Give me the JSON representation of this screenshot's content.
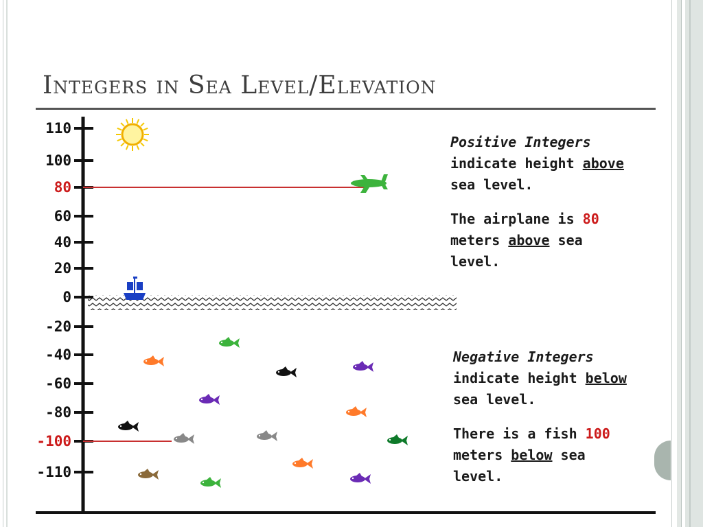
{
  "slide": {
    "title": "Integers in Sea Level/Elevation"
  },
  "axis": {
    "ticks": [
      {
        "value": 110,
        "label": "110",
        "highlight": false
      },
      {
        "value": 100,
        "label": "100",
        "highlight": false
      },
      {
        "value": 80,
        "label": "80",
        "highlight": true
      },
      {
        "value": 60,
        "label": "60",
        "highlight": false
      },
      {
        "value": 40,
        "label": "40",
        "highlight": false
      },
      {
        "value": 20,
        "label": "20",
        "highlight": false
      },
      {
        "value": 0,
        "label": "0",
        "highlight": false
      },
      {
        "value": -20,
        "label": "-20",
        "highlight": false
      },
      {
        "value": -40,
        "label": "-40",
        "highlight": false
      },
      {
        "value": -60,
        "label": "-60",
        "highlight": false
      },
      {
        "value": -80,
        "label": "-80",
        "highlight": false
      },
      {
        "value": -100,
        "label": "-100",
        "highlight": true
      },
      {
        "value": -110,
        "label": "-110",
        "highlight": false
      }
    ],
    "highlight_color": "#cc1b1b"
  },
  "icons": {
    "sun": "sun-icon",
    "airplane": "airplane-icon",
    "ship": "ship-icon",
    "fish": "fish-icon",
    "waves": "waves-pattern"
  },
  "fish_colors": [
    "#3cb33c",
    "#ff7a2a",
    "#111111",
    "#6a2bb5",
    "#888888",
    "#0e7a2a",
    "#8a6a3a"
  ],
  "notes": {
    "positive": {
      "heading": "Positive Integers",
      "line1": "indicate height ",
      "line1_u": "above",
      "line2": "sea level.",
      "fact_a": "The airplane is ",
      "fact_num": "80",
      "fact_b": "meters ",
      "fact_u": "above",
      "fact_c": " sea",
      "fact_d": "level."
    },
    "negative": {
      "heading": "Negative Integers",
      "line1": "indicate height ",
      "line1_u": "below",
      "line2": "sea level.",
      "fact_a": "There is a fish ",
      "fact_num": "100",
      "fact_b": "meters ",
      "fact_u": "below",
      "fact_c": " sea",
      "fact_d": "level."
    }
  }
}
